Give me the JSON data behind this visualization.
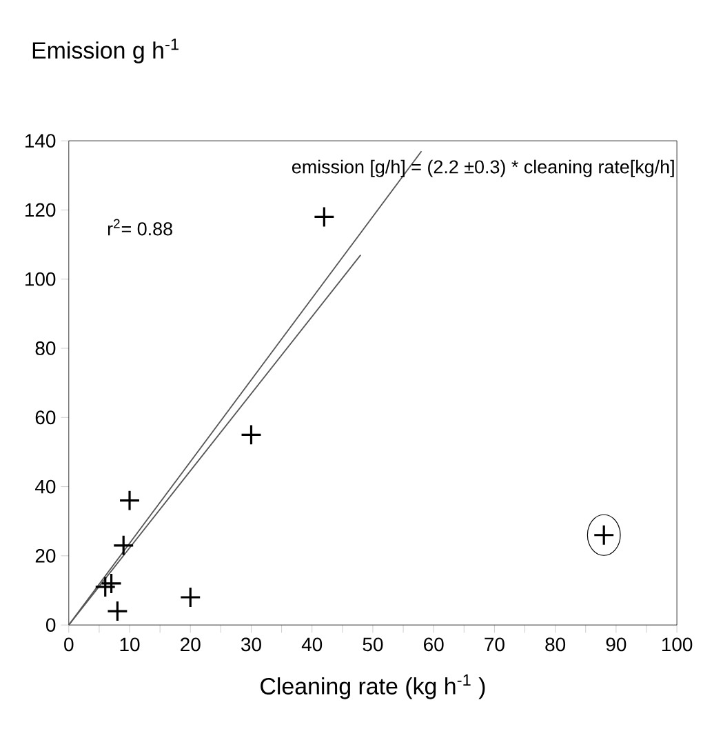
{
  "chart_data": {
    "type": "scatter",
    "xlabel": "Cleaning rate (kg h$^{-1}$ )",
    "ylabel": "Emission g h$^{-1}$",
    "xlim": [
      0,
      100
    ],
    "ylim": [
      0,
      140
    ],
    "xticks": [
      0,
      10,
      20,
      30,
      40,
      50,
      60,
      70,
      80,
      90,
      100
    ],
    "yticks": [
      0,
      20,
      40,
      60,
      80,
      100,
      120,
      140
    ],
    "marker": "cross",
    "grid": false,
    "annotations": [
      "emission [g/h] = (2.2 ±0.3) * cleaning rate[kg/h]",
      "r$^{2}$= 0.88"
    ],
    "series": [
      {
        "color": "#000000",
        "x": [
          6,
          7,
          8,
          9,
          10,
          20,
          30,
          42,
          88
        ],
        "values": [
          11,
          12,
          4,
          23,
          36,
          8,
          55,
          118,
          26
        ]
      },
      {
        "type": "line",
        "color": "#555555",
        "marker": "none",
        "x": [
          0,
          48
        ],
        "values": [
          0,
          107
        ]
      },
      {
        "type": "line",
        "color": "#555555",
        "marker": "none",
        "x": [
          0,
          58
        ],
        "values": [
          0,
          137
        ]
      }
    ]
  }
}
